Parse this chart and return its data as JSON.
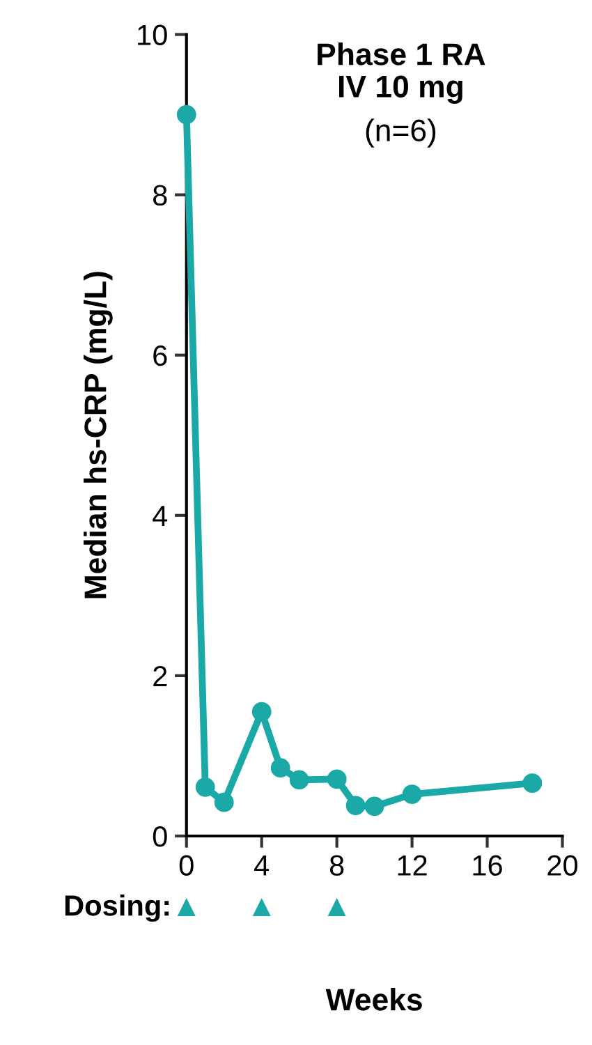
{
  "chart_data": {
    "type": "line",
    "title": "Phase 1 RA\nIV 10 mg",
    "subtitle": "(n=6)",
    "xlabel": "Weeks",
    "ylabel": "Median hs-CRP (mg/L)",
    "x": [
      0,
      1,
      2,
      4,
      5,
      6,
      8,
      9,
      10,
      12,
      18.4
    ],
    "series": [
      {
        "color": "#1aa9a6",
        "values": [
          9.0,
          0.61,
          0.42,
          1.55,
          0.85,
          0.7,
          0.71,
          0.38,
          0.37,
          0.52,
          0.66
        ]
      }
    ],
    "xlim": [
      0,
      20
    ],
    "xticks": [
      0,
      4,
      8,
      12,
      16,
      20
    ],
    "ylim": [
      0,
      10
    ],
    "yticks": [
      0,
      2,
      4,
      6,
      8,
      10
    ],
    "marker": "circle",
    "line_style": "solid",
    "grid": false,
    "legend": false,
    "annotations": [
      "Dosing:",
      "▲",
      "▲",
      "▲"
    ]
  }
}
